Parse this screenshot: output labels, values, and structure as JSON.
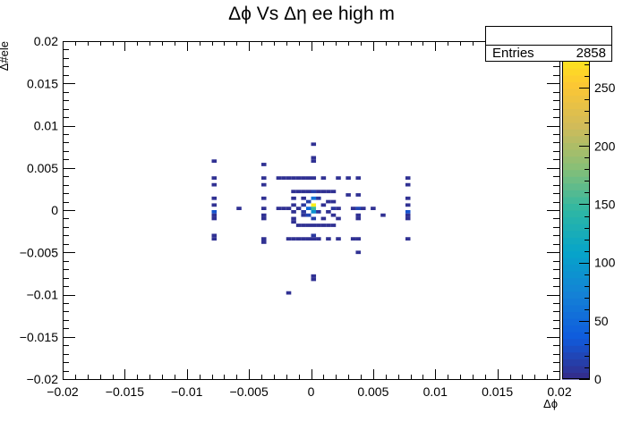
{
  "chart_data": {
    "type": "heatmap",
    "title": "Δϕ Vs Δη ee high m",
    "xlabel": "Δϕ",
    "ylabel": "Δ#ele",
    "xlim": [
      -0.02,
      0.02
    ],
    "ylim": [
      -0.02,
      0.02
    ],
    "x_ticks": [
      "−0.02",
      "−0.015",
      "−0.01",
      "−0.005",
      "0",
      "0.005",
      "0.01",
      "0.015",
      "0.02"
    ],
    "y_ticks": [
      "−0.02",
      "−0.015",
      "−0.01",
      "−0.005",
      "0",
      "0.005",
      "0.01",
      "0.015",
      "0.02"
    ],
    "colorbar_ticks": [
      "0",
      "50",
      "100",
      "150",
      "200",
      "250"
    ],
    "colorbar_top_label": "0",
    "zmax": 290,
    "bin_width": 0.0004,
    "stats": {
      "label": "Entries",
      "value": "2858"
    },
    "cells": [
      [
        -0.0078,
        0.0058,
        5
      ],
      [
        -0.0078,
        0.0038,
        5
      ],
      [
        -0.0078,
        0.003,
        5
      ],
      [
        -0.0078,
        0.0014,
        5
      ],
      [
        -0.0078,
        0.0006,
        5
      ],
      [
        -0.0078,
        -0.0002,
        30
      ],
      [
        -0.0078,
        -0.0006,
        5
      ],
      [
        -0.0078,
        -0.001,
        5
      ],
      [
        -0.0078,
        -0.003,
        5
      ],
      [
        -0.0078,
        -0.0034,
        5
      ],
      [
        -0.0058,
        0.0002,
        5
      ],
      [
        -0.0038,
        0.0054,
        5
      ],
      [
        -0.0038,
        0.0038,
        5
      ],
      [
        -0.0038,
        0.003,
        5
      ],
      [
        -0.0038,
        0.0014,
        5
      ],
      [
        -0.0038,
        0.0002,
        5
      ],
      [
        -0.0038,
        -0.0006,
        5
      ],
      [
        -0.0038,
        -0.001,
        5
      ],
      [
        -0.0038,
        -0.0034,
        5
      ],
      [
        -0.0038,
        -0.0038,
        5
      ],
      [
        -0.0026,
        0.0038,
        5
      ],
      [
        -0.0026,
        0.0002,
        5
      ],
      [
        -0.0022,
        0.0038,
        5
      ],
      [
        -0.0022,
        0.0002,
        5
      ],
      [
        -0.0018,
        0.0038,
        5
      ],
      [
        -0.0018,
        0.0002,
        5
      ],
      [
        -0.0018,
        -0.0034,
        5
      ],
      [
        -0.0014,
        0.0038,
        5
      ],
      [
        -0.0014,
        0.0022,
        5
      ],
      [
        -0.0014,
        0.0014,
        5
      ],
      [
        -0.0014,
        0.0006,
        5
      ],
      [
        -0.0014,
        -0.0002,
        5
      ],
      [
        -0.0014,
        -0.001,
        5
      ],
      [
        -0.0014,
        -0.0014,
        5
      ],
      [
        -0.0014,
        -0.0034,
        5
      ],
      [
        -0.001,
        0.0038,
        5
      ],
      [
        -0.001,
        0.0022,
        5
      ],
      [
        -0.001,
        0.0002,
        5
      ],
      [
        -0.001,
        -0.0018,
        5
      ],
      [
        -0.001,
        -0.0034,
        5
      ],
      [
        -0.0006,
        0.0038,
        5
      ],
      [
        -0.0006,
        0.0022,
        5
      ],
      [
        -0.0006,
        0.0014,
        5
      ],
      [
        -0.0006,
        0.0006,
        10
      ],
      [
        -0.0006,
        -0.0002,
        10
      ],
      [
        -0.0006,
        -0.0006,
        8
      ],
      [
        -0.0006,
        -0.0018,
        5
      ],
      [
        -0.0006,
        -0.0034,
        5
      ],
      [
        -0.0002,
        0.0038,
        5
      ],
      [
        -0.0002,
        0.0022,
        5
      ],
      [
        -0.0002,
        0.001,
        15
      ],
      [
        -0.0002,
        0.0002,
        50
      ],
      [
        -0.0002,
        -0.0006,
        20
      ],
      [
        -0.0002,
        -0.0018,
        5
      ],
      [
        -0.0002,
        -0.0034,
        5
      ],
      [
        0.0002,
        0.0078,
        5
      ],
      [
        0.0002,
        0.0062,
        5
      ],
      [
        0.0002,
        0.0058,
        5
      ],
      [
        0.0002,
        0.0038,
        5
      ],
      [
        0.0002,
        0.0022,
        15
      ],
      [
        0.0002,
        0.0014,
        60
      ],
      [
        0.0002,
        0.0006,
        280
      ],
      [
        0.0002,
        0.0002,
        150
      ],
      [
        0.0002,
        -0.0002,
        90
      ],
      [
        0.0002,
        -0.001,
        15
      ],
      [
        0.0002,
        -0.0018,
        5
      ],
      [
        0.0002,
        -0.003,
        10
      ],
      [
        0.0002,
        -0.0034,
        5
      ],
      [
        0.0002,
        -0.0078,
        5
      ],
      [
        0.0002,
        -0.0082,
        5
      ],
      [
        0.0006,
        0.0022,
        5
      ],
      [
        0.0006,
        0.0014,
        10
      ],
      [
        0.0006,
        -0.0002,
        8
      ],
      [
        0.0006,
        -0.0018,
        5
      ],
      [
        0.0006,
        -0.0034,
        5
      ],
      [
        0.001,
        0.0038,
        5
      ],
      [
        0.001,
        0.0022,
        5
      ],
      [
        0.001,
        0.0006,
        5
      ],
      [
        0.001,
        -0.001,
        5
      ],
      [
        0.001,
        -0.0018,
        5
      ],
      [
        0.0014,
        0.0022,
        5
      ],
      [
        0.0014,
        0.001,
        5
      ],
      [
        0.0014,
        -0.0002,
        5
      ],
      [
        0.0014,
        -0.0018,
        5
      ],
      [
        0.0014,
        -0.0034,
        5
      ],
      [
        0.0018,
        0.0022,
        5
      ],
      [
        0.0018,
        0.001,
        5
      ],
      [
        0.0018,
        0.0002,
        10
      ],
      [
        0.0018,
        -0.0006,
        5
      ],
      [
        0.0018,
        -0.0018,
        5
      ],
      [
        0.0022,
        0.0038,
        5
      ],
      [
        0.0022,
        0.0002,
        5
      ],
      [
        0.0022,
        -0.001,
        5
      ],
      [
        0.0022,
        -0.0034,
        5
      ],
      [
        0.003,
        0.0038,
        5
      ],
      [
        0.003,
        0.0018,
        5
      ],
      [
        0.0034,
        0.0002,
        5
      ],
      [
        0.0034,
        -0.0034,
        5
      ],
      [
        0.0038,
        0.0038,
        5
      ],
      [
        0.0038,
        0.0018,
        5
      ],
      [
        0.0038,
        0.0002,
        20
      ],
      [
        0.0038,
        -0.0006,
        5
      ],
      [
        0.0038,
        -0.001,
        5
      ],
      [
        0.0038,
        -0.0034,
        5
      ],
      [
        0.0038,
        -0.005,
        5
      ],
      [
        0.0042,
        0.0002,
        5
      ],
      [
        0.005,
        0.0002,
        5
      ],
      [
        0.0058,
        -0.0006,
        5
      ],
      [
        0.0078,
        0.0038,
        5
      ],
      [
        0.0078,
        0.003,
        5
      ],
      [
        0.0078,
        0.0014,
        5
      ],
      [
        0.0078,
        0.0006,
        5
      ],
      [
        0.0078,
        -0.0002,
        30
      ],
      [
        0.0078,
        -0.0006,
        5
      ],
      [
        0.0078,
        -0.001,
        5
      ],
      [
        0.0078,
        -0.0034,
        5
      ],
      [
        -0.0018,
        -0.0098,
        5
      ]
    ]
  },
  "colors": {
    "palette": [
      "#352a87",
      "#0f5cdd",
      "#1481d6",
      "#06a4ca",
      "#2eb7a4",
      "#87bf77",
      "#d1bb59",
      "#fec832",
      "#f9fb0e"
    ]
  }
}
